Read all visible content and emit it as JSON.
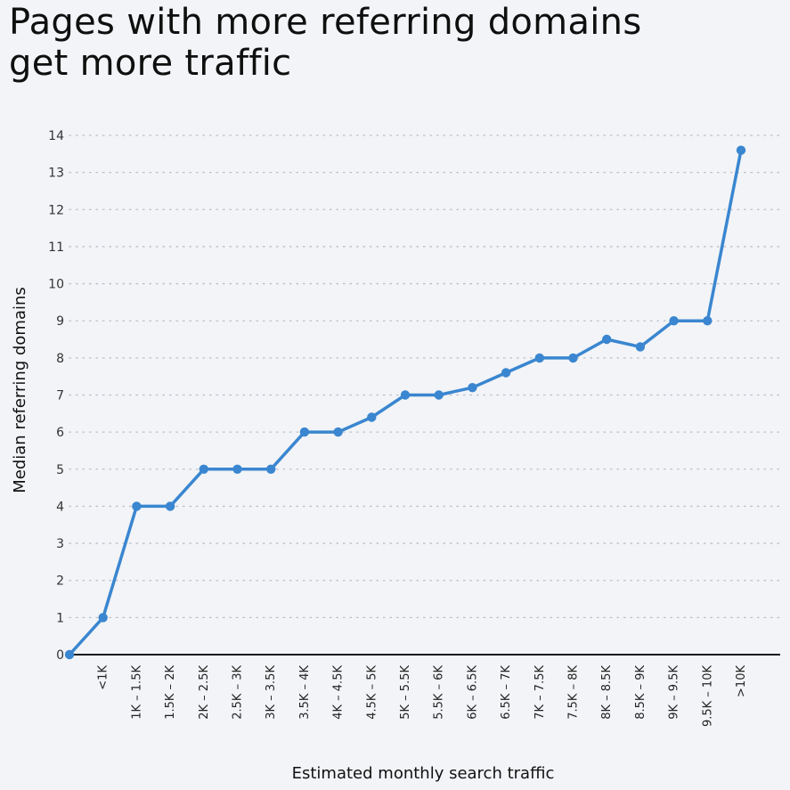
{
  "header": {
    "title_line1": "Pages with more referring domains",
    "title_line2": "get more traffic"
  },
  "colors": {
    "background": "#f2f4f7",
    "line": "#3a86d0",
    "grid": "#b9bec6",
    "axis": "#1a1a1a"
  },
  "chart_data": {
    "type": "line",
    "title": "Pages with more referring domains get more traffic",
    "xlabel": "Estimated monthly search traffic",
    "ylabel": "Median referring domains",
    "ylim": [
      0,
      14
    ],
    "yticks": [
      0,
      1,
      2,
      3,
      4,
      5,
      6,
      7,
      8,
      9,
      10,
      11,
      12,
      13,
      14
    ],
    "grid": "horizontal dotted",
    "categories": [
      "<1K",
      "1K – 1.5K",
      "1.5K – 2K",
      "2K – 2.5K",
      "2.5K – 3K",
      "3K – 3.5K",
      "3.5K – 4K",
      "4K – 4.5K",
      "4.5K – 5K",
      "5K – 5.5K",
      "5.5K – 6K",
      "6K – 6.5K",
      "6.5K – 7K",
      "7K – 7.5K",
      "7.5K – 8K",
      "8K – 8.5K",
      "8.5K – 9K",
      "9K – 9.5K",
      "9.5K – 10K",
      ">10K"
    ],
    "origin_value": 0,
    "values": [
      1,
      4,
      4,
      5,
      5,
      5,
      6,
      6,
      6.4,
      7,
      7,
      7.2,
      7.6,
      8,
      8,
      8.5,
      8.3,
      9,
      9,
      13.6
    ]
  }
}
